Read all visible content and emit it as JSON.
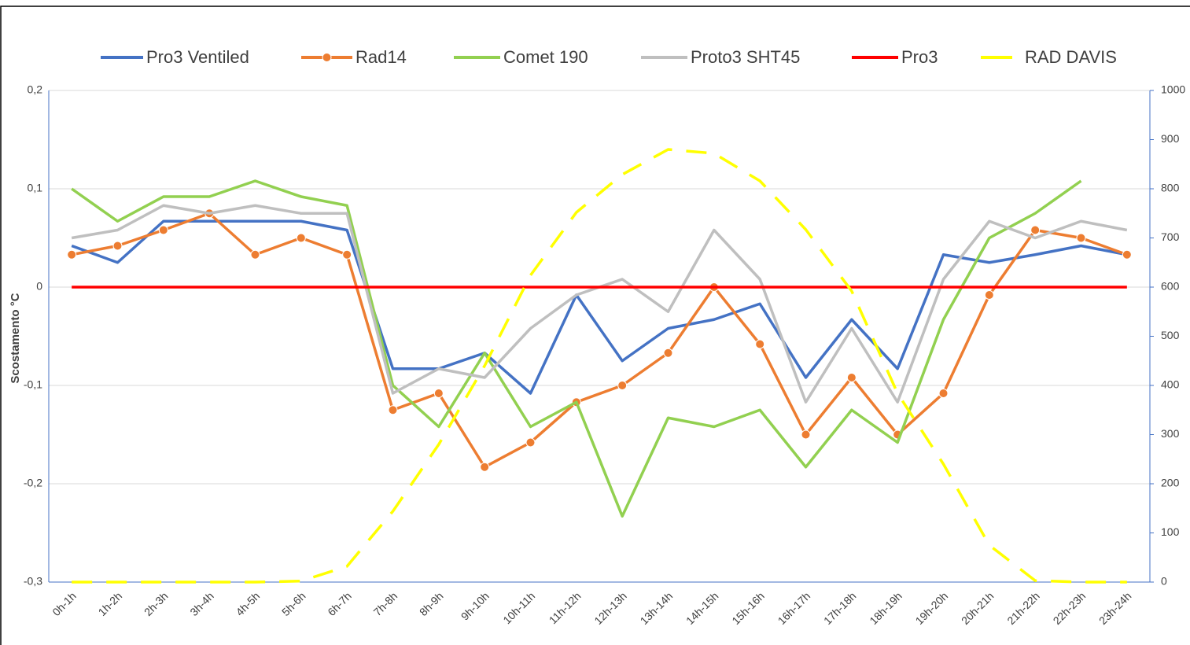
{
  "chart_data": {
    "type": "line",
    "y_label": "Scostamento °C",
    "categories": [
      "0h-1h",
      "1h-2h",
      "2h-3h",
      "3h-4h",
      "4h-5h",
      "5h-6h",
      "6h-7h",
      "7h-8h",
      "8h-9h",
      "9h-10h",
      "10h-11h",
      "11h-12h",
      "12h-13h",
      "13h-14h",
      "14h-15h",
      "15h-16h",
      "16h-17h",
      "17h-18h",
      "18h-19h",
      "19h-20h",
      "20h-21h",
      "21h-22h",
      "22h-23h",
      "23h-24h"
    ],
    "ylim": [
      -0.3,
      0.2
    ],
    "yticks": [
      {
        "value": -0.3,
        "label": "-0,3"
      },
      {
        "value": -0.2,
        "label": "-0,2"
      },
      {
        "value": -0.1,
        "label": "-0,1"
      },
      0,
      {
        "value": 0.1,
        "label": "0,1"
      },
      {
        "value": 0.2,
        "label": "0,2"
      }
    ],
    "y2lim": [
      0,
      1000
    ],
    "y2ticks": [
      0,
      100,
      200,
      300,
      400,
      500,
      600,
      700,
      800,
      900,
      1000
    ],
    "grid": true,
    "legend": "top",
    "series": [
      {
        "name": "Pro3 Ventiled",
        "color": "#4472c4",
        "values": [
          0.042,
          0.025,
          0.067,
          0.067,
          0.067,
          0.067,
          0.058,
          -0.083,
          -0.083,
          -0.067,
          -0.108,
          -0.008,
          -0.075,
          -0.042,
          -0.033,
          -0.017,
          -0.092,
          -0.033,
          -0.083,
          0.033,
          0.025,
          0.033,
          0.042,
          0.033
        ]
      },
      {
        "name": "Rad14",
        "color": "#ed7d31",
        "markers": true,
        "values": [
          0.033,
          0.042,
          0.058,
          0.075,
          0.033,
          0.05,
          0.033,
          -0.125,
          -0.108,
          -0.183,
          -0.158,
          -0.117,
          -0.1,
          -0.067,
          0,
          -0.058,
          -0.15,
          -0.092,
          -0.15,
          -0.108,
          -0.008,
          0.058,
          0.05,
          0.033
        ]
      },
      {
        "name": "Comet 190",
        "color": "#92d050",
        "values": [
          0.1,
          0.067,
          0.092,
          0.092,
          0.108,
          0.092,
          0.083,
          -0.1,
          -0.142,
          -0.067,
          -0.142,
          -0.117,
          -0.233,
          -0.133,
          -0.142,
          -0.125,
          -0.183,
          -0.125,
          -0.158,
          -0.033,
          0.05,
          0.075,
          0.108,
          null
        ]
      },
      {
        "name": "Proto3 SHT45",
        "color": "#bfbfbf",
        "values": [
          0.05,
          0.058,
          0.083,
          0.075,
          0.083,
          0.075,
          0.075,
          -0.108,
          -0.083,
          -0.092,
          -0.042,
          -0.008,
          0.008,
          -0.025,
          0.058,
          0.008,
          -0.117,
          -0.042,
          -0.117,
          0.008,
          0.067,
          0.05,
          0.067,
          0.058
        ]
      },
      {
        "name": "Pro3",
        "color": "#ff0000",
        "values": [
          0,
          0,
          0,
          0,
          0,
          0,
          0,
          0,
          0,
          0,
          0,
          0,
          0,
          0,
          0,
          0,
          0,
          0,
          0,
          0,
          0,
          0,
          0,
          0
        ]
      },
      {
        "name": "RAD DAVIS",
        "color": "#ffff00",
        "axis": "y2",
        "dashed": true,
        "values": [
          0,
          0,
          0,
          0,
          0,
          2,
          32,
          144,
          280,
          440,
          624,
          752,
          829,
          880,
          872,
          816,
          717,
          592,
          384,
          240,
          75,
          3,
          0,
          0
        ]
      }
    ]
  }
}
